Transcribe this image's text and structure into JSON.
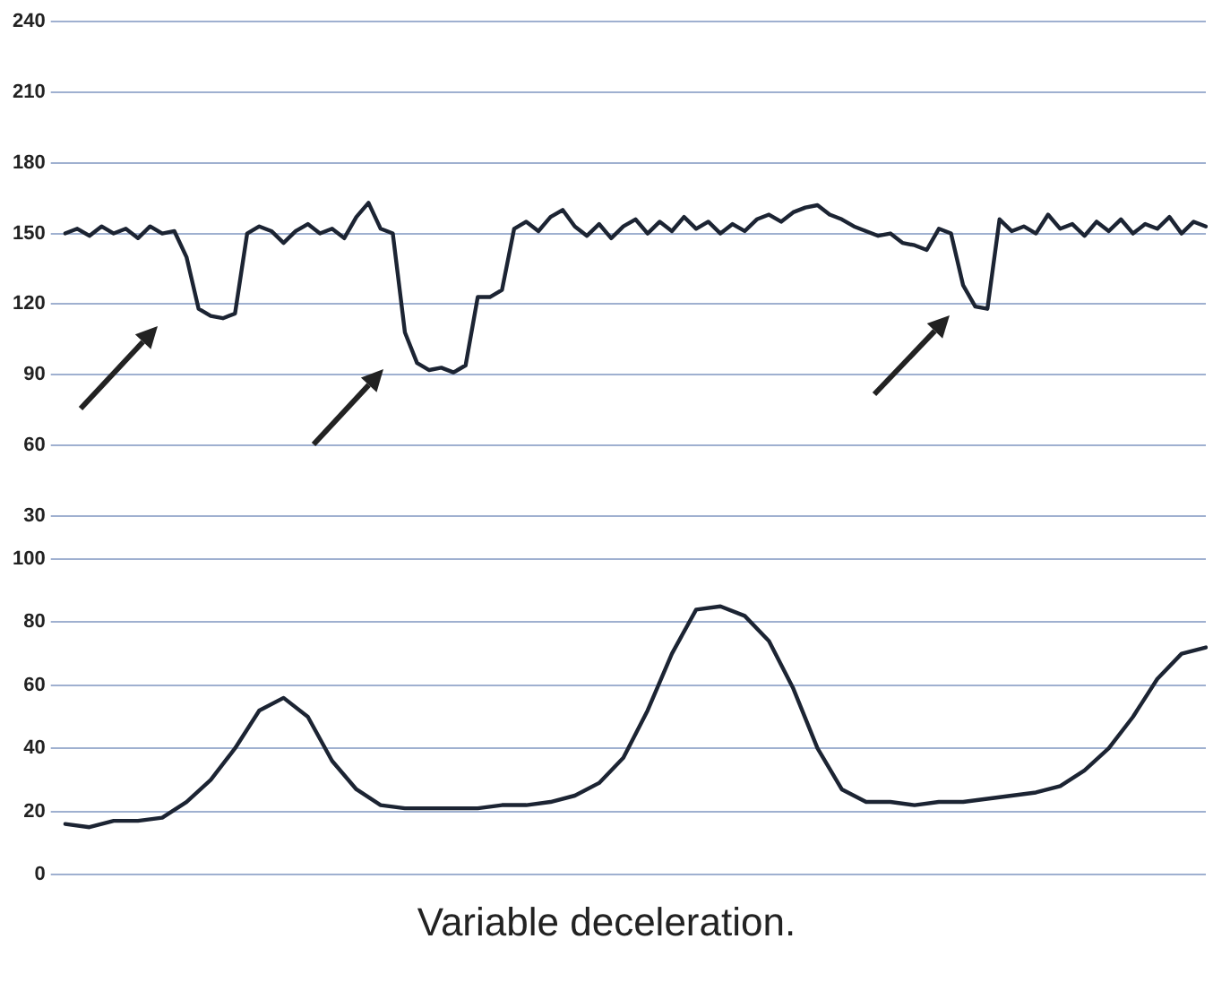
{
  "chart_data": [
    {
      "type": "line",
      "categories": [
        null,
        null,
        null,
        null,
        null,
        null,
        null,
        null,
        null,
        null,
        null,
        null,
        null,
        null,
        null,
        null,
        null,
        null,
        null,
        null,
        null,
        null,
        null,
        null,
        null,
        null,
        null,
        null,
        null,
        null,
        null,
        null,
        null,
        null,
        null,
        null,
        null,
        null,
        null,
        null,
        null,
        null,
        null,
        null,
        null,
        null,
        null,
        null,
        null,
        null,
        null,
        null,
        null,
        null,
        null,
        null,
        null,
        null,
        null,
        null,
        null,
        null,
        null,
        null,
        null,
        null,
        null,
        null,
        null,
        null,
        null,
        null,
        null,
        null,
        null,
        null,
        null,
        null,
        null,
        null,
        null,
        null,
        null,
        null,
        null,
        null,
        null,
        null,
        null,
        null,
        null,
        null,
        null,
        null,
        null
      ],
      "series": [
        {
          "color": "#1c2433",
          "values": [
            150,
            152,
            149,
            153,
            150,
            152,
            148,
            153,
            150,
            151,
            140,
            118,
            115,
            114,
            116,
            150,
            153,
            151,
            146,
            151,
            154,
            150,
            152,
            148,
            157,
            163,
            152,
            150,
            108,
            95,
            92,
            93,
            91,
            94,
            123,
            123,
            126,
            152,
            155,
            151,
            157,
            160,
            153,
            149,
            154,
            148,
            153,
            156,
            150,
            155,
            151,
            157,
            152,
            155,
            150,
            154,
            151,
            156,
            158,
            155,
            159,
            161,
            162,
            158,
            156,
            153,
            151,
            149,
            150,
            146,
            145,
            143,
            152,
            150,
            128,
            119,
            118,
            156,
            151,
            153,
            150,
            158,
            152,
            154,
            149,
            155,
            151,
            156,
            150,
            154,
            152,
            157,
            150,
            155,
            153
          ]
        }
      ],
      "ylim": [
        30,
        240
      ],
      "yticks": [
        30,
        60,
        90,
        120,
        150,
        180,
        210,
        240
      ],
      "grid": "y",
      "tick_labels": "y",
      "marker": "none",
      "line_style": "solid"
    },
    {
      "type": "line",
      "categories": [
        null,
        null,
        null,
        null,
        null,
        null,
        null,
        null,
        null,
        null,
        null,
        null,
        null,
        null,
        null,
        null,
        null,
        null,
        null,
        null,
        null,
        null,
        null,
        null,
        null,
        null,
        null,
        null,
        null,
        null,
        null,
        null,
        null,
        null,
        null,
        null,
        null,
        null,
        null,
        null,
        null,
        null,
        null,
        null,
        null,
        null,
        null,
        null
      ],
      "series": [
        {
          "color": "#1c2433",
          "values": [
            16,
            15,
            17,
            17,
            18,
            23,
            30,
            40,
            52,
            56,
            50,
            36,
            27,
            22,
            21,
            21,
            21,
            21,
            22,
            22,
            23,
            25,
            29,
            37,
            52,
            70,
            84,
            85,
            82,
            74,
            59,
            40,
            27,
            23,
            23,
            22,
            23,
            23,
            24,
            25,
            26,
            28,
            33,
            40,
            50,
            62,
            70,
            72
          ]
        }
      ],
      "ylim": [
        0,
        100
      ],
      "yticks": [
        0,
        20,
        40,
        60,
        80,
        100
      ],
      "grid": "y",
      "tick_labels": "y",
      "marker": "none",
      "line_style": "solid",
      "annotations": [
        "Variable deceleration."
      ]
    }
  ]
}
